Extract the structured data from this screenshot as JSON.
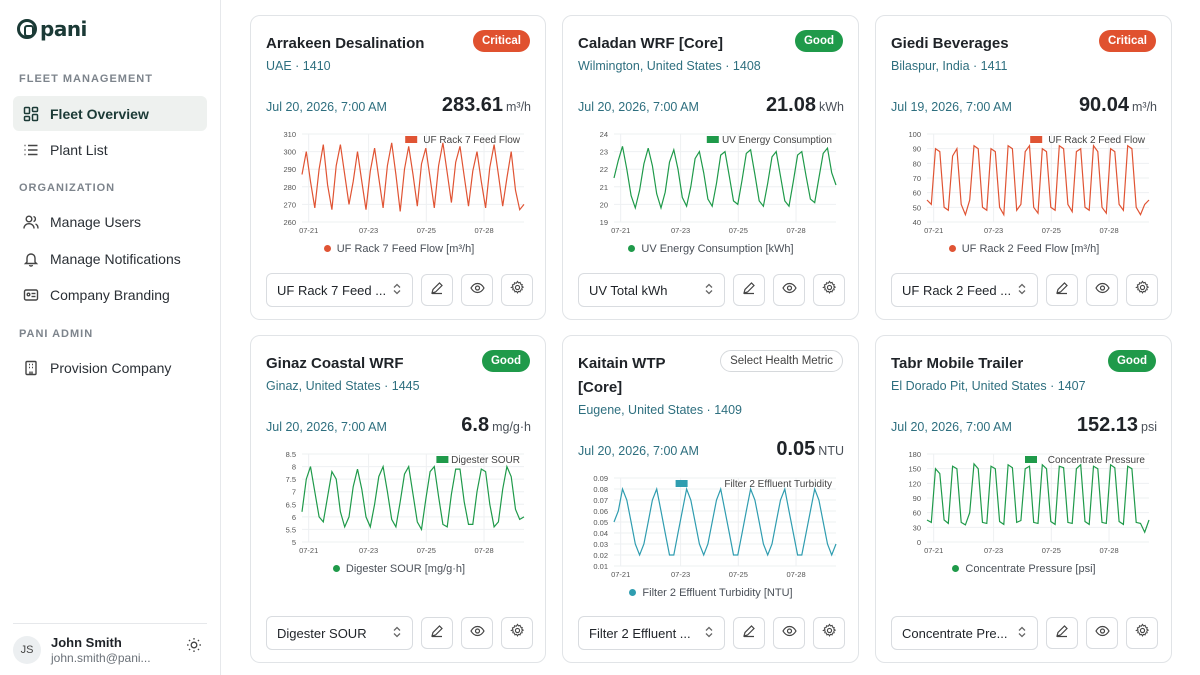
{
  "app": {
    "logo": "pani"
  },
  "sidebar": {
    "sections": [
      {
        "label": "FLEET MANAGEMENT"
      },
      {
        "label": "ORGANIZATION"
      },
      {
        "label": "PANI ADMIN"
      }
    ],
    "items": [
      {
        "label": "Fleet Overview",
        "icon": "grid-icon",
        "active": true
      },
      {
        "label": "Plant List",
        "icon": "list-icon"
      },
      {
        "label": "Manage Users",
        "icon": "users-icon"
      },
      {
        "label": "Manage Notifications",
        "icon": "bell-icon"
      },
      {
        "label": "Company Branding",
        "icon": "id-card-icon"
      },
      {
        "label": "Provision Company",
        "icon": "building-icon"
      }
    ],
    "user": {
      "initials": "JS",
      "name": "John Smith",
      "email": "john.smith@pani..."
    }
  },
  "cards": [
    {
      "title": "Arrakeen Desalination",
      "location": "UAE · 1410",
      "badge": "Critical",
      "status": "critical",
      "date": "Jul 20, 2026, 7:00 AM",
      "value": "283.61",
      "unit": "m³/h",
      "metric": "UF Rack 7 Feed ...",
      "color": "#e05434",
      "chart_data": {
        "type": "line",
        "series": [
          {
            "name": "UF Rack 7 Feed Flow",
            "values": [
              287,
              300,
              283,
              268,
              290,
              304,
              281,
              267,
              292,
              304,
              287,
              270,
              283,
              300,
              283,
              267,
              289,
              302,
              285,
              268,
              292,
              305,
              287,
              266,
              290,
              303,
              287,
              269,
              293,
              302,
              285,
              268,
              292,
              305,
              288,
              271,
              294,
              303,
              286,
              269,
              289,
              300,
              283,
              268,
              291,
              304,
              287,
              269,
              285,
              300,
              278,
              267,
              270
            ]
          }
        ],
        "ylim": [
          260,
          310
        ],
        "yticks": [
          260,
          270,
          280,
          290,
          300,
          310
        ],
        "xticks": [
          "07-21",
          "07-23",
          "07-25",
          "07-28"
        ],
        "legend_label": "UF Rack 7 Feed Flow",
        "xlabel": "UF Rack 7 Feed Flow [m³/h]"
      }
    },
    {
      "title": "Caladan WRF [Core]",
      "location": "Wilmington, United States · 1408",
      "badge": "Good",
      "status": "good",
      "date": "Jul 20, 2026, 7:00 AM",
      "value": "21.08",
      "unit": "kWh",
      "metric": "UV Total kWh",
      "color": "#1f9a4a",
      "chart_data": {
        "type": "line",
        "series": [
          {
            "name": "UV Energy Consumption",
            "values": [
              21.5,
              22.5,
              23.3,
              22.0,
              20.5,
              19.8,
              20.8,
              22.3,
              23.2,
              22.2,
              20.6,
              19.8,
              20.7,
              22.4,
              23.1,
              22.0,
              20.4,
              19.9,
              21.0,
              22.6,
              23.0,
              21.8,
              20.3,
              19.9,
              21.2,
              22.8,
              23.0,
              21.6,
              20.2,
              20.0,
              21.4,
              22.9,
              23.1,
              21.7,
              20.2,
              19.9,
              21.2,
              22.7,
              23.0,
              21.6,
              20.2,
              19.9,
              21.3,
              22.8,
              23.0,
              21.6,
              20.3,
              20.1,
              21.5,
              22.9,
              23.2,
              21.8,
              21.1
            ]
          }
        ],
        "ylim": [
          19,
          24
        ],
        "yticks": [
          19,
          20,
          21,
          22,
          23,
          24
        ],
        "xticks": [
          "07-21",
          "07-23",
          "07-25",
          "07-28"
        ],
        "legend_label": "UV Energy Consumption",
        "xlabel": "UV Energy Consumption [kWh]"
      }
    },
    {
      "title": "Giedi Beverages",
      "location": "Bilaspur, India · 1411",
      "badge": "Critical",
      "status": "critical",
      "date": "Jul 19, 2026, 7:00 AM",
      "value": "90.04",
      "unit": "m³/h",
      "metric": "UF Rack 2 Feed ...",
      "color": "#e05434",
      "chart_data": {
        "type": "line",
        "series": [
          {
            "name": "UF Rack 2 Feed Flow",
            "values": [
              55,
              52,
              90,
              88,
              50,
              48,
              85,
              90,
              52,
              45,
              55,
              92,
              90,
              50,
              48,
              90,
              88,
              50,
              45,
              92,
              90,
              48,
              52,
              88,
              92,
              50,
              46,
              90,
              88,
              50,
              48,
              92,
              90,
              52,
              47,
              88,
              90,
              50,
              48,
              92,
              88,
              50,
              46,
              90,
              88,
              52,
              48,
              92,
              90,
              50,
              45,
              52,
              55
            ]
          }
        ],
        "ylim": [
          40,
          100
        ],
        "yticks": [
          40,
          50,
          60,
          70,
          80,
          90,
          100
        ],
        "xticks": [
          "07-21",
          "07-23",
          "07-25",
          "07-28"
        ],
        "legend_label": "UF Rack 2 Feed Flow",
        "xlabel": "UF Rack 2 Feed Flow [m³/h]"
      }
    },
    {
      "title": "Ginaz Coastal WRF",
      "location": "Ginaz, United States · 1445",
      "badge": "Good",
      "status": "good",
      "date": "Jul 20, 2026, 7:00 AM",
      "value": "6.8",
      "unit": "mg/g·h",
      "metric": "Digester SOUR",
      "color": "#1f9a4a",
      "chart_data": {
        "type": "line",
        "series": [
          {
            "name": "Digester SOUR",
            "values": [
              6.2,
              7.5,
              8.0,
              7.0,
              6.0,
              5.8,
              6.8,
              7.8,
              7.5,
              6.2,
              5.6,
              6.0,
              7.2,
              7.9,
              7.1,
              6.0,
              5.6,
              6.5,
              7.6,
              8.0,
              7.0,
              5.9,
              5.6,
              6.6,
              7.7,
              8.0,
              6.9,
              5.8,
              5.5,
              6.7,
              7.8,
              8.0,
              6.8,
              5.7,
              5.6,
              6.9,
              7.9,
              7.9,
              6.6,
              5.7,
              5.7,
              7.0,
              7.9,
              7.8,
              6.5,
              5.6,
              5.8,
              7.1,
              8.0,
              7.6,
              6.3,
              5.9,
              6.0
            ]
          }
        ],
        "ylim": [
          5,
          8.5
        ],
        "yticks": [
          5,
          5.5,
          6,
          6.5,
          7,
          7.5,
          8,
          8.5
        ],
        "xticks": [
          "07-21",
          "07-23",
          "07-25",
          "07-28"
        ],
        "legend_label": "Digester SOUR",
        "xlabel": "Digester SOUR [mg/g·h]"
      }
    },
    {
      "title": "Kaitain WTP [Core]",
      "location": "Eugene, United States · 1409",
      "badge": "Select Health Metric",
      "status": "neutral",
      "date": "Jul 20, 2026, 7:00 AM",
      "value": "0.05",
      "unit": "NTU",
      "metric": "Filter 2 Effluent ...",
      "color": "#2f9db0",
      "chart_data": {
        "type": "line",
        "series": [
          {
            "name": "Filter 2 Effluent Turbidity",
            "values": [
              0.05,
              0.06,
              0.08,
              0.07,
              0.05,
              0.03,
              0.02,
              0.03,
              0.05,
              0.07,
              0.08,
              0.06,
              0.04,
              0.02,
              0.02,
              0.04,
              0.06,
              0.08,
              0.07,
              0.05,
              0.03,
              0.02,
              0.03,
              0.05,
              0.07,
              0.08,
              0.06,
              0.04,
              0.02,
              0.02,
              0.04,
              0.06,
              0.08,
              0.07,
              0.05,
              0.03,
              0.02,
              0.03,
              0.05,
              0.07,
              0.08,
              0.06,
              0.04,
              0.02,
              0.02,
              0.04,
              0.06,
              0.08,
              0.07,
              0.05,
              0.03,
              0.02,
              0.03
            ]
          }
        ],
        "ylim": [
          0.01,
          0.09
        ],
        "yticks": [
          0.01,
          0.02,
          0.03,
          0.04,
          0.05,
          0.06,
          0.07,
          0.08,
          0.09
        ],
        "xticks": [
          "07-21",
          "07-23",
          "07-25",
          "07-28"
        ],
        "legend_label": "Filter 2 Effluent Turbidity",
        "xlabel": "Filter 2 Effluent Turbidity [NTU]"
      }
    },
    {
      "title": "Tabr Mobile Trailer",
      "location": "El Dorado Pit, United States · 1407",
      "badge": "Good",
      "status": "good",
      "date": "Jul 20, 2026, 7:00 AM",
      "value": "152.13",
      "unit": "psi",
      "metric": "Concentrate Pre...",
      "color": "#1f9a4a",
      "chart_data": {
        "type": "line",
        "series": [
          {
            "name": "Concentrate Pressure",
            "values": [
              45,
              40,
              150,
              140,
              45,
              38,
              155,
              150,
              40,
              35,
              60,
              160,
              150,
              40,
              38,
              155,
              150,
              42,
              36,
              158,
              152,
              40,
              44,
              150,
              155,
              40,
              38,
              158,
              150,
              42,
              36,
              155,
              152,
              40,
              38,
              150,
              158,
              42,
              36,
              155,
              150,
              40,
              38,
              158,
              152,
              42,
              36,
              155,
              150,
              40,
              38,
              20,
              45
            ]
          }
        ],
        "ylim": [
          0,
          180
        ],
        "yticks": [
          0,
          30,
          60,
          90,
          120,
          150,
          180
        ],
        "xticks": [
          "07-21",
          "07-23",
          "07-25",
          "07-28"
        ],
        "legend_label": "Concentrate Pressure",
        "xlabel": "Concentrate Pressure [psi]"
      }
    }
  ]
}
